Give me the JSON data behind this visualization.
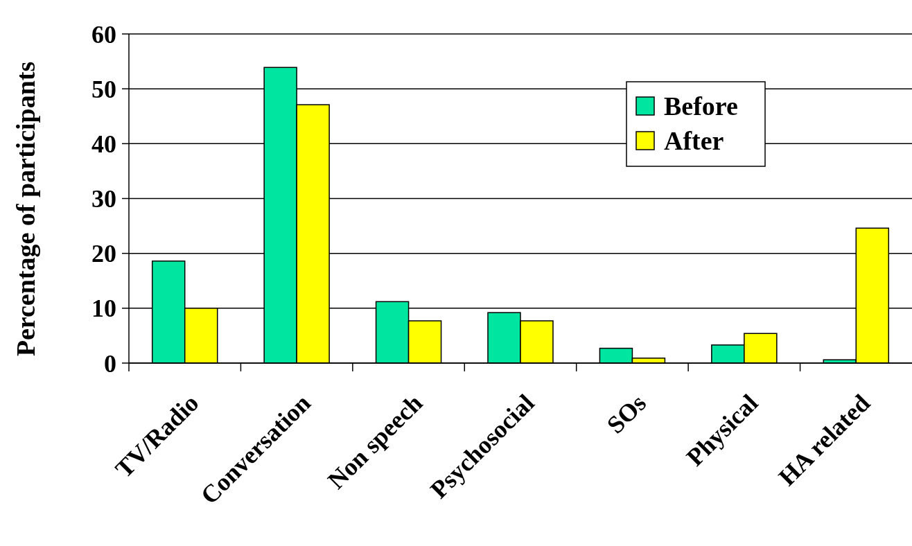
{
  "chart_data": {
    "type": "bar",
    "ylabel": "Percentage of participants",
    "categories": [
      "TV/Radio",
      "Conversation",
      "Non speech",
      "Psychosocial",
      "SOs",
      "Physical",
      "HA related"
    ],
    "series": [
      {
        "name": "Before",
        "color": "#00e6a0",
        "values": [
          18.6,
          53.9,
          11.2,
          9.2,
          2.7,
          3.3,
          0.6
        ]
      },
      {
        "name": "After",
        "color": "#ffff00",
        "values": [
          10.0,
          47.1,
          7.7,
          7.7,
          0.9,
          5.4,
          24.6
        ]
      }
    ],
    "ylim": [
      0,
      60
    ],
    "yticks": [
      0,
      10,
      20,
      30,
      40,
      50,
      60
    ],
    "grid": "y",
    "legend": "top right"
  }
}
